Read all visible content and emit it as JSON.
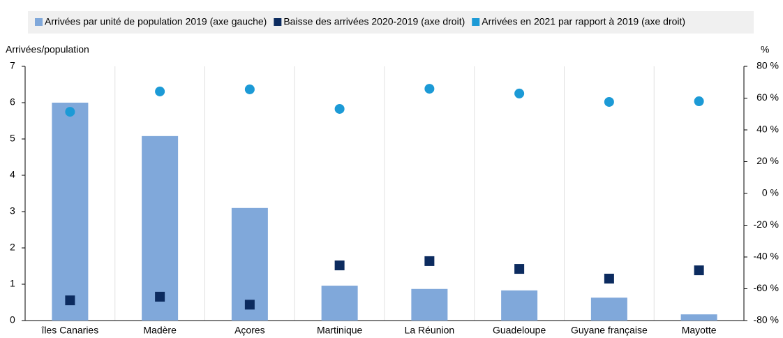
{
  "chart_data": {
    "type": "bar",
    "ylabel": "Arrivées/population",
    "y2label": "%",
    "categories": [
      "îles Canaries",
      "Madère",
      "Açores",
      "Martinique",
      "La Réunion",
      "Guadeloupe",
      "Guyane française",
      "Mayotte"
    ],
    "series": [
      {
        "name": "Arrivées par unité de population 2019 (axe gauche)",
        "color": "#80a8da",
        "marker": "bar",
        "values": [
          6.0,
          5.08,
          3.1,
          0.96,
          0.87,
          0.83,
          0.63,
          0.17
        ]
      },
      {
        "name": "Baisse des arrivées 2020-2019 (axe droit)",
        "color": "#0c2b5f",
        "marker": "square",
        "axis": "y2",
        "values": [
          -67.3,
          -65,
          -70,
          -45.3,
          -42.6,
          -47.5,
          -53.6,
          -48.4
        ]
      },
      {
        "name": "Arrivées en 2021 par rapport à 2019 (axe droit)",
        "color": "#1c9ad6",
        "marker": "circle",
        "axis": "y2",
        "values": [
          51.4,
          64.2,
          65.5,
          53.2,
          65.9,
          62.9,
          57.6,
          58
        ]
      }
    ],
    "ylim": [
      0,
      7
    ],
    "yticks": [
      0,
      1,
      2,
      3,
      4,
      5,
      6,
      7
    ],
    "y2lim": [
      -80,
      80
    ],
    "y2ticks": [
      {
        "value": -80,
        "label": "-80 %"
      },
      {
        "value": -60,
        "label": "-60 %"
      },
      {
        "value": -40,
        "label": "-40 %"
      },
      {
        "value": -20,
        "label": "-20 %"
      },
      {
        "value": 0,
        "label": "0 %"
      },
      {
        "value": 20,
        "label": "20 %"
      },
      {
        "value": 40,
        "label": "40 %"
      },
      {
        "value": 60,
        "label": "60 %"
      },
      {
        "value": 80,
        "label": "80 %"
      }
    ],
    "legend": "top"
  }
}
